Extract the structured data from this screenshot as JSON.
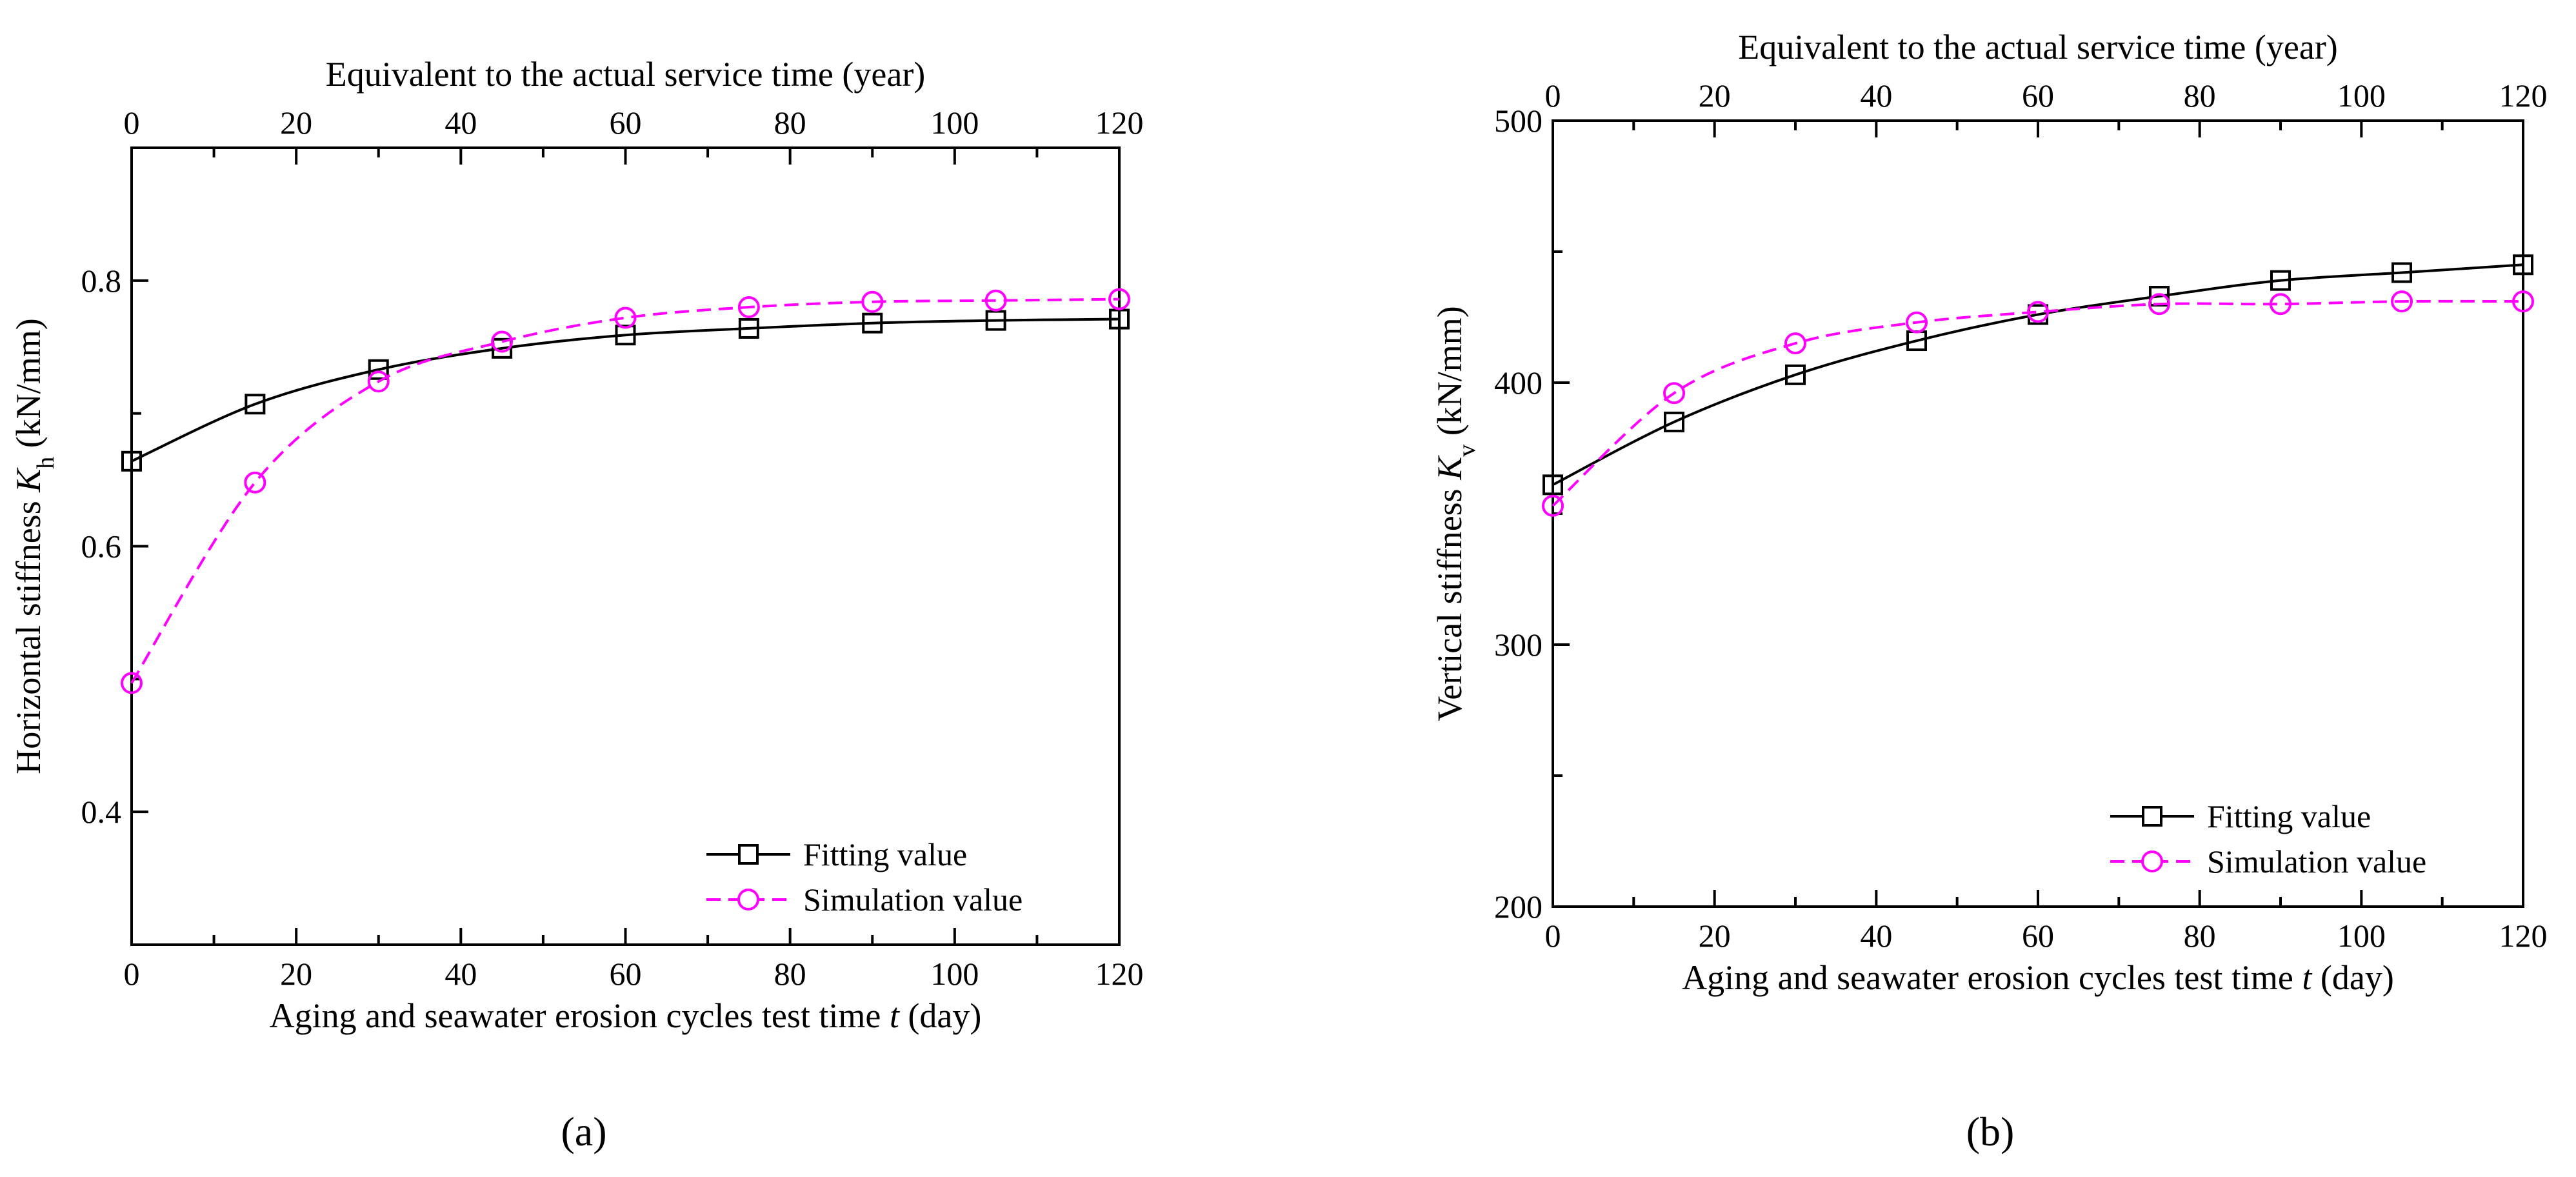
{
  "figure": {
    "panel_labels": [
      "(a)",
      "(b)"
    ],
    "colors": {
      "fitting": "#000000",
      "simulation": "#ff00ff"
    }
  },
  "chart_data": [
    {
      "type": "line",
      "panel": "(a)",
      "xlabel": "Aging and seawater erosion cycles test time t (day)",
      "xlabel_parts": [
        "Aging and seawater erosion cycles test time ",
        "t",
        " (day)"
      ],
      "x2label": "Equivalent to the actual service time (year)",
      "ylabel": "Horizontal stiffness Kh (kN/mm)",
      "ylabel_parts": [
        "Horizontal stiffness ",
        "K",
        "h",
        " (kN/mm)"
      ],
      "xlim": [
        0,
        120
      ],
      "x2lim": [
        0,
        120
      ],
      "ylim": [
        0.3,
        0.9
      ],
      "xticks": [
        0,
        20,
        40,
        60,
        80,
        100,
        120
      ],
      "x2ticks": [
        0,
        20,
        40,
        60,
        80,
        100,
        120
      ],
      "yticks": [
        0.4,
        0.6,
        0.8
      ],
      "ytick_labels": [
        "0.4",
        "0.6",
        "0.8"
      ],
      "legend_position": "bottom-right",
      "series": [
        {
          "name": "Fitting value",
          "style": "solid",
          "marker": "square",
          "x": [
            0,
            15,
            30,
            45,
            60,
            75,
            90,
            105,
            120
          ],
          "y": [
            0.664,
            0.707,
            0.733,
            0.749,
            0.759,
            0.764,
            0.768,
            0.77,
            0.771
          ]
        },
        {
          "name": "Simulation value",
          "style": "dashed",
          "marker": "circle",
          "x": [
            0,
            15,
            30,
            45,
            60,
            75,
            90,
            105,
            120
          ],
          "y": [
            0.497,
            0.648,
            0.724,
            0.754,
            0.772,
            0.78,
            0.784,
            0.785,
            0.786
          ]
        }
      ]
    },
    {
      "type": "line",
      "panel": "(b)",
      "xlabel": "Aging and seawater erosion cycles test time t (day)",
      "xlabel_parts": [
        "Aging and seawater erosion cycles test time ",
        "t",
        " (day)"
      ],
      "x2label": "Equivalent to the actual service time (year)",
      "ylabel": "Vertical stiffness Kv (kN/mm)",
      "ylabel_parts": [
        "Vertical stiffness ",
        "K",
        "v",
        " (kN/mm)"
      ],
      "xlim": [
        0,
        120
      ],
      "x2lim": [
        0,
        120
      ],
      "ylim": [
        200,
        500
      ],
      "xticks": [
        0,
        20,
        40,
        60,
        80,
        100,
        120
      ],
      "x2ticks": [
        0,
        20,
        40,
        60,
        80,
        100,
        120
      ],
      "yticks": [
        200,
        300,
        400,
        500
      ],
      "ytick_labels": [
        "200",
        "300",
        "400",
        "500"
      ],
      "legend_position": "bottom-right",
      "series": [
        {
          "name": "Fitting value",
          "style": "solid",
          "marker": "square",
          "x": [
            0,
            15,
            30,
            45,
            60,
            75,
            90,
            105,
            120
          ],
          "y": [
            361,
            385,
            403,
            416,
            426,
            433,
            439,
            442,
            445
          ]
        },
        {
          "name": "Simulation value",
          "style": "dashed",
          "marker": "circle",
          "x": [
            0,
            15,
            30,
            45,
            60,
            75,
            90,
            105,
            120
          ],
          "y": [
            353,
            396,
            415,
            423,
            427,
            430,
            430,
            431,
            431
          ]
        }
      ]
    }
  ]
}
